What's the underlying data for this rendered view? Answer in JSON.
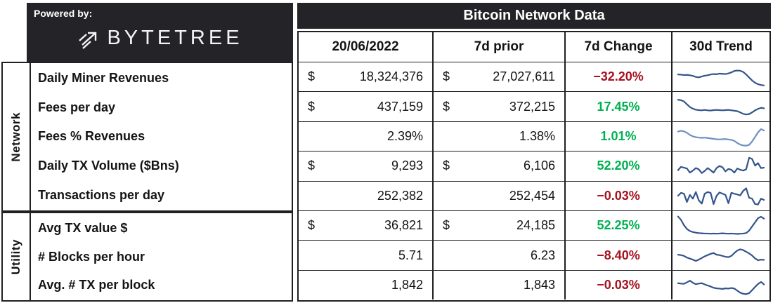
{
  "branding": {
    "powered_by": "Powered by:",
    "logo_text": "BYTETREE",
    "logo_icon": "arrow-up-right-with-speed-lines"
  },
  "colors": {
    "positive": "#00B152",
    "negative": "#A5121F",
    "panel_bg": "#242428",
    "grid_line": "#202020",
    "spark_default": "#33548A",
    "spark_light": "#6C91C2"
  },
  "chart_data": {
    "type": "table",
    "title": "Bitcoin Network Data",
    "columns": [
      "20/06/2022",
      "7d prior",
      "7d Change",
      "30d Trend"
    ],
    "groups": [
      {
        "label": "Network",
        "rows": [
          {
            "label": "Daily Miner Revenues",
            "currency": "$",
            "value": "18,324,376",
            "prior_currency": "$",
            "prior_value": "27,027,611",
            "change": "−32.20%",
            "direction": "down",
            "trend_color": "#33548A",
            "trend": [
              62,
              61,
              59,
              60,
              58,
              55,
              50,
              48,
              52,
              56,
              58,
              62,
              64,
              63,
              66,
              65,
              64,
              67,
              72,
              79,
              81,
              80,
              74,
              62,
              47,
              33,
              22,
              15,
              11,
              9
            ]
          },
          {
            "label": "Fees per day",
            "currency": "$",
            "value": "437,159",
            "prior_currency": "$",
            "prior_value": "372,215",
            "change": "17.45%",
            "direction": "up",
            "trend_color": "#33548A",
            "trend": [
              82,
              80,
              74,
              60,
              47,
              39,
              34,
              32,
              31,
              33,
              31,
              30,
              32,
              33,
              32,
              31,
              32,
              33,
              31,
              29,
              27,
              21,
              14,
              11,
              13,
              21,
              31,
              38,
              43,
              41
            ]
          },
          {
            "label": "Fees % Revenues",
            "currency": "",
            "value": "2.39%",
            "prior_currency": "",
            "prior_value": "1.38%",
            "change": "1.01%",
            "direction": "up",
            "trend_color": "#6C91C2",
            "trend": [
              74,
              78,
              75,
              68,
              58,
              51,
              47,
              45,
              44,
              45,
              43,
              41,
              39,
              37,
              36,
              37,
              38,
              36,
              34,
              29,
              19,
              11,
              7,
              6,
              10,
              26,
              48,
              70,
              86,
              79
            ]
          },
          {
            "label": "Daily TX Volume ($Bns)",
            "currency": "$",
            "value": "9,293",
            "prior_currency": "$",
            "prior_value": "6,106",
            "change": "52.20%",
            "direction": "up",
            "trend_color": "#33548A",
            "trend": [
              30,
              46,
              42,
              38,
              18,
              28,
              40,
              34,
              16,
              26,
              40,
              30,
              18,
              40,
              50,
              44,
              24,
              36,
              32,
              18,
              38,
              32,
              28,
              34,
              90,
              84,
              52,
              64,
              40,
              42
            ]
          },
          {
            "label": "Transactions per day",
            "currency": "",
            "value": "252,382",
            "prior_currency": "",
            "prior_value": "252,454",
            "change": "−0.03%",
            "direction": "down",
            "trend_color": "#33548A",
            "trend": [
              52,
              66,
              62,
              22,
              56,
              38,
              70,
              30,
              14,
              62,
              70,
              66,
              12,
              52,
              68,
              62,
              56,
              16,
              66,
              62,
              58,
              54,
              76,
              88,
              42,
              38,
              12,
              10,
              38,
              32
            ]
          }
        ]
      },
      {
        "label": "Utility",
        "rows": [
          {
            "label": "Avg TX value $",
            "currency": "$",
            "value": "36,821",
            "prior_currency": "$",
            "prior_value": "24,185",
            "change": "52.25%",
            "direction": "up",
            "trend_color": "#33548A",
            "trend": [
              94,
              78,
              52,
              34,
              24,
              19,
              16,
              14,
              13,
              12,
              12,
              11,
              12,
              11,
              12,
              13,
              12,
              11,
              12,
              11,
              10,
              11,
              12,
              14,
              26,
              46,
              66,
              86,
              93,
              84
            ]
          },
          {
            "label": "# Blocks per hour",
            "currency": "",
            "value": "5.71",
            "prior_currency": "",
            "prior_value": "6.23",
            "change": "−8.40%",
            "direction": "down",
            "trend_color": "#33548A",
            "trend": [
              52,
              50,
              46,
              38,
              33,
              28,
              22,
              28,
              36,
              44,
              50,
              56,
              60,
              52,
              50,
              46,
              42,
              40,
              46,
              60,
              72,
              78,
              74,
              66,
              58,
              48,
              34,
              25,
              28,
              27
            ]
          },
          {
            "label": "Avg. # TX per block",
            "currency": "",
            "value": "1,842",
            "prior_currency": "",
            "prior_value": "1,843",
            "change": "−0.03%",
            "direction": "down",
            "trend_color": "#33548A",
            "trend": [
              60,
              58,
              57,
              64,
              72,
              62,
              55,
              58,
              60,
              54,
              49,
              44,
              38,
              35,
              34,
              32,
              35,
              34,
              37,
              34,
              24,
              14,
              9,
              7,
              12,
              26,
              42,
              56,
              66,
              54
            ]
          }
        ]
      }
    ]
  }
}
